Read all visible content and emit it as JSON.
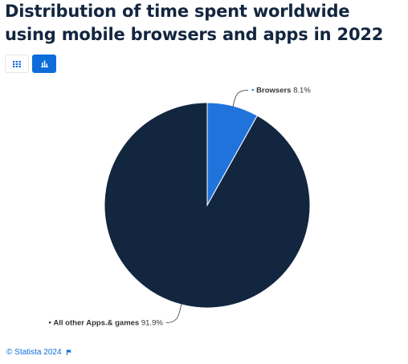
{
  "title": "Distribution of time spent worldwide using mobile browsers and apps in 2022",
  "view_toggle": {
    "table_icon": "table-grid-icon",
    "chart_icon": "bar-chart-icon",
    "active": "chart"
  },
  "chart_data": {
    "type": "pie",
    "title": "Distribution of time spent worldwide using mobile browsers and apps in 2022",
    "unit": "%",
    "slices": [
      {
        "name": "Browsers",
        "value": 8.1,
        "label": "8.1%",
        "color": "#2173dc"
      },
      {
        "name": "All other Apps.& games",
        "value": 91.9,
        "label": "91.9%",
        "color": "#132640"
      }
    ]
  },
  "footer": {
    "credit": "© Statista 2024",
    "flag_icon": "flag-icon"
  }
}
